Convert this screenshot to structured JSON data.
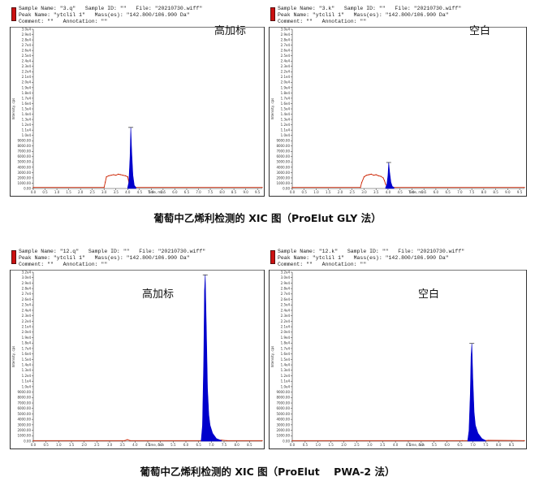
{
  "colors": {
    "accent_red": "#cc2200",
    "signal_blue": "#0000cc",
    "marker_black": "#000000"
  },
  "captions": [
    "葡萄中乙烯利检测的 XIC 图（ProElut GLY 法）",
    "葡萄中乙烯利检测的 XIC 图（ProElut    PWA-2 法）"
  ],
  "panels": [
    {
      "header": [
        "Sample Name: \"3.q\"   Sample ID: \"\"   File: \"20210730.wiff\"",
        "Peak Name: \"ytclil 1\"   Mass(es): \"142.800/106.900 Da\"",
        "Comment: \"\"   Annotation: \"\""
      ],
      "overlay_label": "高加标"
    },
    {
      "header": [
        "Sample Name: \"3.k\"   Sample ID: \"\"   File: \"20210730.wiff\"",
        "Peak Name: \"ytclil 1\"   Mass(es): \"142.800/106.900 Da\"",
        "Comment: \"\"   Annotation: \"\""
      ],
      "overlay_label": "空白"
    },
    {
      "header": [
        "Sample Name: \"12.q\"   Sample ID: \"\"   File: \"20210730.wiff\"",
        "Peak Name: \"ytclil 1\"   Mass(es): \"142.800/106.900 Da\"",
        "Comment: \"\"   Annotation: \"\""
      ],
      "overlay_label": "高加标"
    },
    {
      "header": [
        "Sample Name: \"12.k\"   Sample ID: \"\"   File: \"20210730.wiff\"",
        "Peak Name: \"ytclil 1\"   Mass(es): \"142.800/106.900 Da\"",
        "Comment: \"\"   Annotation: \"\""
      ],
      "overlay_label": "空白"
    }
  ],
  "chart_data": [
    {
      "type": "line",
      "xlabel": "Time, min",
      "ylabel": "Intensity, cps",
      "xlim": [
        0,
        9.7
      ],
      "ylim": [
        0,
        30000
      ],
      "xticks": [
        "0.0",
        "0.5",
        "1.0",
        "1.5",
        "2.0",
        "2.5",
        "3.0",
        "3.5",
        "4.0",
        "4.5",
        "5.0",
        "5.5",
        "6.0",
        "6.5",
        "7.0",
        "7.5",
        "8.0",
        "8.5",
        "9.0",
        "9.5"
      ],
      "yticks": [
        "3.0e4",
        "2.9e4",
        "2.8e4",
        "2.7e4",
        "2.6e4",
        "2.5e4",
        "2.4e4",
        "2.3e4",
        "2.2e4",
        "2.1e4",
        "2.0e4",
        "1.9e4",
        "1.8e4",
        "1.7e4",
        "1.6e4",
        "1.5e4",
        "1.4e4",
        "1.3e4",
        "1.2e4",
        "1.1e4",
        "1.0e4",
        "9000.00",
        "8000.00",
        "7000.00",
        "6000.00",
        "5000.00",
        "4000.00",
        "3000.00",
        "2000.00",
        "1000.00",
        "0.00"
      ],
      "series": [
        {
          "color": "#cc2200",
          "x": [
            0,
            3.0,
            3.05,
            3.1,
            3.2,
            3.3,
            3.4,
            3.5,
            3.6,
            3.7,
            3.8,
            3.9,
            4.0,
            4.05,
            4.1,
            4.2,
            9.7
          ],
          "y": [
            200,
            200,
            1200,
            2200,
            2400,
            2500,
            2600,
            2500,
            2700,
            2600,
            2500,
            2400,
            2200,
            1200,
            400,
            200,
            200
          ]
        },
        {
          "color": "#0000cc",
          "x": [
            4.0,
            4.05,
            4.1,
            4.13,
            4.17,
            4.22,
            4.28,
            4.35
          ],
          "y": [
            200,
            1200,
            6000,
            11500,
            7000,
            2500,
            600,
            200
          ]
        }
      ]
    },
    {
      "type": "line",
      "xlabel": "Time, min",
      "ylabel": "Intensity, cps",
      "xlim": [
        0,
        9.7
      ],
      "ylim": [
        0,
        30000
      ],
      "xticks": [
        "0.0",
        "0.5",
        "1.0",
        "1.5",
        "2.0",
        "2.5",
        "3.0",
        "3.5",
        "4.0",
        "4.5",
        "5.0",
        "5.5",
        "6.0",
        "6.5",
        "7.0",
        "7.5",
        "8.0",
        "8.5",
        "9.0",
        "9.5"
      ],
      "yticks": [
        "3.0e4",
        "2.9e4",
        "2.8e4",
        "2.7e4",
        "2.6e4",
        "2.5e4",
        "2.4e4",
        "2.3e4",
        "2.2e4",
        "2.1e4",
        "2.0e4",
        "1.9e4",
        "1.8e4",
        "1.7e4",
        "1.6e4",
        "1.5e4",
        "1.4e4",
        "1.3e4",
        "1.2e4",
        "1.1e4",
        "1.0e4",
        "9000.00",
        "8000.00",
        "7000.00",
        "6000.00",
        "5000.00",
        "4000.00",
        "3000.00",
        "2000.00",
        "1000.00",
        "0.00"
      ],
      "series": [
        {
          "color": "#cc2200",
          "x": [
            0,
            2.85,
            2.9,
            3.0,
            3.1,
            3.2,
            3.3,
            3.4,
            3.5,
            3.6,
            3.7,
            3.8,
            3.85,
            3.9,
            3.95,
            4.0,
            9.7
          ],
          "y": [
            200,
            200,
            1100,
            2200,
            2500,
            2600,
            2700,
            2500,
            2600,
            2400,
            2300,
            2000,
            1500,
            800,
            400,
            200,
            200
          ]
        },
        {
          "color": "#0000cc",
          "x": [
            3.9,
            3.95,
            4.0,
            4.03,
            4.07,
            4.12,
            4.18,
            4.25
          ],
          "y": [
            200,
            700,
            2500,
            4900,
            3000,
            1200,
            400,
            200
          ]
        }
      ]
    },
    {
      "type": "line",
      "xlabel": "Time, min",
      "ylabel": "Intensity, cps",
      "xlim": [
        0,
        9.0
      ],
      "ylim": [
        0,
        32000
      ],
      "xticks": [
        "0.0",
        "0.5",
        "1.0",
        "1.5",
        "2.0",
        "2.5",
        "3.0",
        "3.5",
        "4.0",
        "4.5",
        "5.0",
        "5.5",
        "6.0",
        "6.5",
        "7.0",
        "7.5",
        "8.0",
        "8.5"
      ],
      "yticks": [
        "3.2e4",
        "3.0e4",
        "2.9e4",
        "2.8e4",
        "2.7e4",
        "2.6e4",
        "2.5e4",
        "2.4e4",
        "2.3e4",
        "2.2e4",
        "2.1e4",
        "2.0e4",
        "1.9e4",
        "1.8e4",
        "1.7e4",
        "1.6e4",
        "1.5e4",
        "1.4e4",
        "1.3e4",
        "1.2e4",
        "1.1e4",
        "1.0e4",
        "9000.00",
        "8000.00",
        "7000.00",
        "6000.00",
        "5000.00",
        "4000.00",
        "3000.00",
        "2000.00",
        "1000.00",
        "0.00"
      ],
      "series": [
        {
          "color": "#cc2200",
          "x": [
            0,
            3.6,
            3.7,
            3.8,
            6.8,
            7.4,
            7.6,
            9.0
          ],
          "y": [
            100,
            100,
            300,
            100,
            100,
            200,
            100,
            100
          ]
        },
        {
          "color": "#0000cc",
          "x": [
            6.6,
            6.65,
            6.7,
            6.73,
            6.76,
            6.8,
            6.85,
            6.9,
            6.95,
            7.05,
            7.2,
            7.4
          ],
          "y": [
            100,
            3000,
            15000,
            28500,
            31500,
            22000,
            10000,
            5000,
            3000,
            1500,
            500,
            100
          ]
        }
      ]
    },
    {
      "type": "line",
      "xlabel": "Time, min",
      "ylabel": "Intensity, cps",
      "xlim": [
        0,
        9.0
      ],
      "ylim": [
        0,
        32000
      ],
      "xticks": [
        "0.0",
        "0.5",
        "1.0",
        "1.5",
        "2.0",
        "2.5",
        "3.0",
        "3.5",
        "4.0",
        "4.5",
        "5.0",
        "5.5",
        "6.0",
        "6.5",
        "7.0",
        "7.5",
        "8.0",
        "8.5"
      ],
      "yticks": [
        "3.2e4",
        "3.0e4",
        "2.9e4",
        "2.8e4",
        "2.7e4",
        "2.6e4",
        "2.5e4",
        "2.4e4",
        "2.3e4",
        "2.2e4",
        "2.1e4",
        "2.0e4",
        "1.9e4",
        "1.8e4",
        "1.7e4",
        "1.6e4",
        "1.5e4",
        "1.4e4",
        "1.3e4",
        "1.2e4",
        "1.1e4",
        "1.0e4",
        "9000.00",
        "8000.00",
        "7000.00",
        "6000.00",
        "5000.00",
        "4000.00",
        "3000.00",
        "2000.00",
        "1000.00",
        "0.00"
      ],
      "series": [
        {
          "color": "#cc2200",
          "x": [
            0,
            6.6,
            7.4,
            7.6,
            9.0
          ],
          "y": [
            100,
            100,
            100,
            150,
            100
          ]
        },
        {
          "color": "#0000cc",
          "x": [
            6.8,
            6.85,
            6.9,
            6.93,
            6.96,
            7.0,
            7.05,
            7.1,
            7.2,
            7.35,
            7.5
          ],
          "y": [
            100,
            2000,
            9000,
            16000,
            18500,
            12000,
            5500,
            3000,
            1500,
            500,
            100
          ]
        }
      ]
    }
  ]
}
